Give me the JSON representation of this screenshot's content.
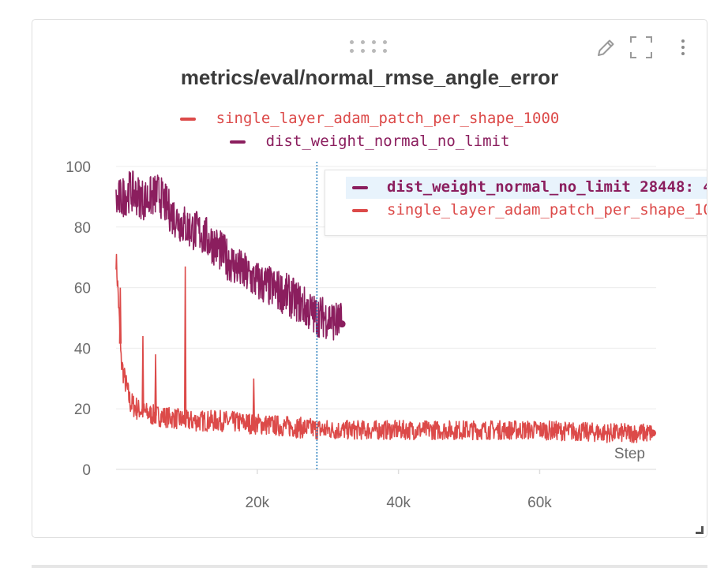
{
  "panel": {
    "title": "metrics/eval/normal_rmse_angle_error",
    "icons": [
      "drag-handle-icon",
      "pencil-icon",
      "expand-icon",
      "kebab-menu-icon",
      "resize-icon"
    ]
  },
  "colors": {
    "series_a": "#8b1e5e",
    "series_b": "#dc4a49",
    "grid": "#ececec",
    "tick_text": "#6b6b6b",
    "cursor": "#2a7fbd"
  },
  "tooltip": {
    "row1": "dist_weight_normal_no_limit 28448: 4",
    "row2": "single_layer_adam_patch_per_shape_10"
  },
  "chart_data": {
    "type": "line",
    "title": "metrics/eval/normal_rmse_angle_error",
    "xlabel": "Step",
    "ylabel": "",
    "xlim": [
      0,
      76500
    ],
    "ylim": [
      0,
      100
    ],
    "x_ticks": [
      20000,
      40000,
      60000
    ],
    "x_tick_labels": [
      "20k",
      "40k",
      "60k"
    ],
    "y_ticks": [
      0,
      20,
      40,
      60,
      80,
      100
    ],
    "y_tick_labels": [
      "0",
      "20",
      "40",
      "60",
      "80",
      "100"
    ],
    "grid": true,
    "legend": [
      "single_layer_adam_patch_per_shape_1000",
      "dist_weight_normal_no_limit"
    ],
    "cursor_step": 28448,
    "series": [
      {
        "name": "dist_weight_normal_no_limit",
        "color": "#8b1e5e",
        "x": [
          0,
          2000,
          4000,
          6000,
          8000,
          10000,
          12000,
          14000,
          16000,
          18000,
          20000,
          22000,
          24000,
          26000,
          28000,
          30000,
          32000
        ],
        "values": [
          88,
          92,
          89,
          91,
          84,
          80,
          78,
          74,
          69,
          65,
          62,
          60,
          58,
          55,
          51,
          50,
          48
        ]
      },
      {
        "name": "single_layer_adam_patch_per_shape_1000",
        "color": "#dc4a49",
        "x": [
          0,
          300,
          700,
          1200,
          2000,
          3000,
          5000,
          8000,
          10000,
          12000,
          15000,
          20000,
          25000,
          30000,
          40000,
          50000,
          60000,
          70000,
          76000
        ],
        "values": [
          70,
          58,
          36,
          30,
          22,
          20,
          18,
          17,
          16,
          16,
          16,
          15,
          14,
          13,
          13,
          13,
          13,
          12,
          12
        ]
      }
    ],
    "spikes": [
      {
        "series": "single_layer_adam_patch_per_shape_1000",
        "x": 600,
        "value": 60
      },
      {
        "series": "single_layer_adam_patch_per_shape_1000",
        "x": 3800,
        "value": 44
      },
      {
        "series": "single_layer_adam_patch_per_shape_1000",
        "x": 9800,
        "value": 67
      },
      {
        "series": "single_layer_adam_patch_per_shape_1000",
        "x": 5600,
        "value": 38
      },
      {
        "series": "single_layer_adam_patch_per_shape_1000",
        "x": 19500,
        "value": 30
      }
    ]
  }
}
